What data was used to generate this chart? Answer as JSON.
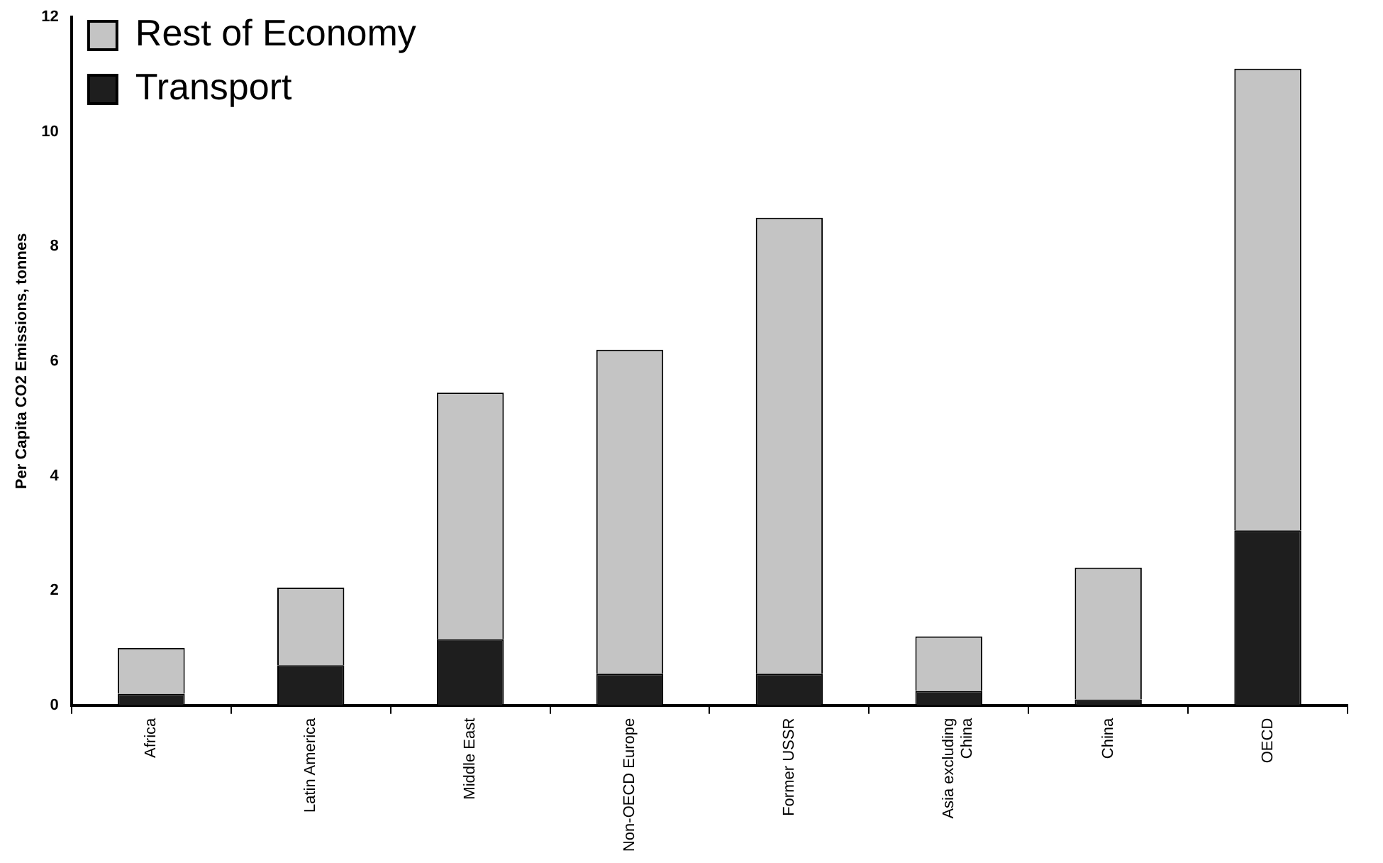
{
  "chart_data": {
    "type": "bar",
    "stacked": true,
    "ylabel": "Per Capita CO2 Emissions, tonnes",
    "categories": [
      "Africa",
      "Latin America",
      "Middle East",
      "Non-OECD Europe",
      "Former USSR",
      "Asia excluding China",
      "China",
      "OECD"
    ],
    "series": [
      {
        "name": "Transport",
        "color": "#1e1e1e",
        "values": [
          0.2,
          0.7,
          1.15,
          0.55,
          0.55,
          0.25,
          0.1,
          3.05
        ]
      },
      {
        "name": "Rest of Economy",
        "color": "#c4c4c4",
        "values": [
          0.8,
          1.35,
          4.3,
          5.65,
          7.95,
          0.95,
          2.3,
          8.05
        ]
      }
    ],
    "ylim": [
      0,
      12
    ],
    "yticks": [
      0,
      2,
      4,
      6,
      8,
      10,
      12
    ],
    "grid": false,
    "legend": "top left"
  }
}
